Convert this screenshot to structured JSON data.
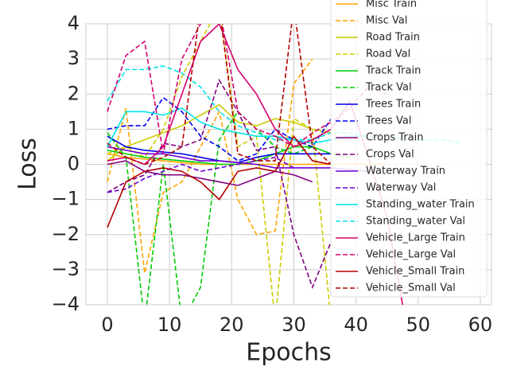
{
  "chart_data": {
    "type": "line",
    "xlabel": "Epochs",
    "ylabel": "Loss",
    "x": [
      0,
      3,
      6,
      9,
      12,
      15,
      18,
      21,
      24,
      27,
      30,
      33,
      36,
      39,
      42,
      45,
      48,
      51,
      54,
      57
    ],
    "xlim": [
      -3.45,
      61.8
    ],
    "ylim": [
      -4,
      4
    ],
    "xticks": [
      0,
      10,
      20,
      30,
      40,
      50,
      60
    ],
    "yticks": [
      {
        "value": -4,
        "label": "−4"
      },
      {
        "value": -3,
        "label": "−3"
      },
      {
        "value": -2,
        "label": "−2"
      },
      {
        "value": -1,
        "label": "−1"
      },
      0,
      1,
      2,
      3,
      4
    ],
    "grid": true,
    "legend": "upper right",
    "series": [
      {
        "name": "Misc Train",
        "color": "#ffa500",
        "linestyle": "solid",
        "values": [
          0.3,
          0.2,
          0.15,
          0.1,
          0.05,
          0.0,
          0.0,
          0.0,
          0.0,
          0.0,
          0.0,
          0.0,
          0.0,
          0.0,
          0.0,
          0.0,
          null,
          null,
          null,
          null
        ]
      },
      {
        "name": "Misc Val",
        "color": "#ffa500",
        "linestyle": "dashed",
        "values": [
          -0.5,
          1.6,
          -3.1,
          -0.8,
          -0.5,
          0.5,
          1.5,
          -1.0,
          -2.0,
          -1.9,
          2.3,
          3.0,
          null,
          null,
          null,
          null,
          null,
          null,
          null,
          null
        ]
      },
      {
        "name": "Road Train",
        "color": "#cccc00",
        "linestyle": "solid",
        "values": [
          0.1,
          0.5,
          0.7,
          0.9,
          1.1,
          1.4,
          1.7,
          1.2,
          1.1,
          1.3,
          1.2,
          1.0,
          0.9,
          null,
          null,
          null,
          null,
          null,
          null,
          null
        ]
      },
      {
        "name": "Road Val",
        "color": "#cccc00",
        "linestyle": "dashed",
        "values": [
          0.3,
          0.5,
          0.2,
          1.0,
          2.5,
          3.5,
          4.5,
          0.5,
          0.8,
          -4.5,
          1.3,
          1.0,
          -4.5,
          null,
          null,
          null,
          null,
          null,
          null,
          null
        ]
      },
      {
        "name": "Track Train",
        "color": "#00cc00",
        "linestyle": "solid",
        "values": [
          0.4,
          0.3,
          0.2,
          0.15,
          0.1,
          0.05,
          0.0,
          0.0,
          0.1,
          0.3,
          0.5,
          0.5,
          0.3,
          0.2,
          null,
          null,
          null,
          null,
          null,
          null
        ]
      },
      {
        "name": "Track Val",
        "color": "#00cc00",
        "linestyle": "dashed",
        "values": [
          0.9,
          0.2,
          -4.5,
          0.0,
          -4.5,
          -3.5,
          0.7,
          1.5,
          1.0,
          0.5,
          0.3,
          0.5,
          null,
          null,
          null,
          null,
          null,
          null,
          null,
          null
        ]
      },
      {
        "name": "Trees Train",
        "color": "#0000ee",
        "linestyle": "solid",
        "values": [
          0.8,
          0.5,
          0.4,
          0.35,
          0.3,
          0.2,
          0.1,
          0.05,
          0.2,
          0.3,
          0.3,
          0.3,
          0.3,
          null,
          null,
          null,
          null,
          null,
          null,
          null
        ]
      },
      {
        "name": "Trees Val",
        "color": "#0000ee",
        "linestyle": "dashed",
        "values": [
          1.0,
          1.1,
          1.1,
          1.9,
          1.5,
          0.8,
          0.5,
          0.1,
          0.3,
          1.0,
          0.7,
          0.5,
          1.3,
          null,
          null,
          null,
          null,
          null,
          null,
          null
        ]
      },
      {
        "name": "Crops Train",
        "color": "#800080",
        "linestyle": "solid",
        "values": [
          0.0,
          0.1,
          -0.2,
          -0.3,
          -0.3,
          -0.4,
          -0.5,
          -0.6,
          -0.4,
          -0.2,
          -0.3,
          -0.5,
          null,
          null,
          null,
          null,
          null,
          null,
          null,
          null
        ]
      },
      {
        "name": "Crops Val",
        "color": "#800080",
        "linestyle": "dashed",
        "values": [
          -0.8,
          -0.5,
          -0.3,
          0.6,
          0.5,
          0.7,
          2.4,
          1.5,
          0.4,
          0.5,
          -2.0,
          -3.5,
          -2.2,
          null,
          null,
          null,
          null,
          null,
          null,
          null
        ]
      },
      {
        "name": "Waterway Train",
        "color": "#6a00d4",
        "linestyle": "solid",
        "values": [
          0.5,
          0.4,
          0.3,
          0.3,
          0.2,
          0.1,
          0.1,
          0.05,
          0.0,
          -0.1,
          -0.1,
          -0.1,
          -0.1,
          -0.15,
          -0.2,
          null,
          null,
          null,
          null,
          null
        ]
      },
      {
        "name": "Waterway Val",
        "color": "#6a00d4",
        "linestyle": "dashed",
        "values": [
          -0.8,
          -0.7,
          -0.4,
          -0.2,
          0.0,
          -0.2,
          -0.1,
          0.0,
          0.1,
          0.2,
          -0.1,
          null,
          null,
          null,
          null,
          null,
          null,
          null,
          null,
          null
        ]
      },
      {
        "name": "Standing_water Train",
        "color": "#00e5e5",
        "linestyle": "solid",
        "values": [
          0.5,
          1.5,
          1.5,
          1.4,
          1.6,
          1.2,
          1.0,
          0.9,
          0.8,
          0.8,
          0.7,
          0.6,
          0.7,
          0.8,
          0.8,
          null,
          null,
          null,
          null,
          null
        ]
      },
      {
        "name": "Standing_water Val",
        "color": "#00e5e5",
        "linestyle": "dashed",
        "values": [
          1.8,
          2.7,
          2.7,
          2.8,
          2.6,
          2.2,
          1.5,
          1.1,
          0.9,
          0.7,
          0.7,
          0.7,
          0.9,
          0.9,
          0.8,
          0.8,
          0.7,
          0.7,
          0.7,
          0.6
        ]
      },
      {
        "name": "Vehicle_Large Train",
        "color": "#d4006f",
        "linestyle": "solid",
        "values": [
          0.1,
          0.2,
          0.0,
          0.5,
          2.0,
          3.5,
          4.0,
          2.7,
          2.0,
          1.0,
          0.5,
          0.7,
          1.0,
          1.8,
          0.2,
          -1.5,
          -4.5,
          null,
          null,
          null
        ]
      },
      {
        "name": "Vehicle_Large Val",
        "color": "#d4006f",
        "linestyle": "dashed",
        "values": [
          1.5,
          3.1,
          3.5,
          0.3,
          3.0,
          4.0,
          4.5,
          1.5,
          1.0,
          0.8,
          0.5,
          0.9,
          1.2,
          1.6,
          2.2,
          2.0,
          null,
          null,
          null,
          null
        ]
      },
      {
        "name": "Vehicle_Small Train",
        "color": "#b30000",
        "linestyle": "solid",
        "values": [
          -1.8,
          -0.5,
          -0.2,
          -0.1,
          -0.2,
          -0.5,
          -1.0,
          -0.2,
          -0.1,
          -0.2,
          0.8,
          0.1,
          0.0,
          null,
          null,
          null,
          null,
          null,
          null,
          null
        ]
      },
      {
        "name": "Vehicle_Small Val",
        "color": "#b30000",
        "linestyle": "dashed",
        "values": [
          0.6,
          0.2,
          0.0,
          0.2,
          0.5,
          4.5,
          4.5,
          0.3,
          0.1,
          0.1,
          4.5,
          0.5,
          0.0,
          null,
          null,
          null,
          null,
          null,
          null,
          null
        ]
      }
    ]
  }
}
